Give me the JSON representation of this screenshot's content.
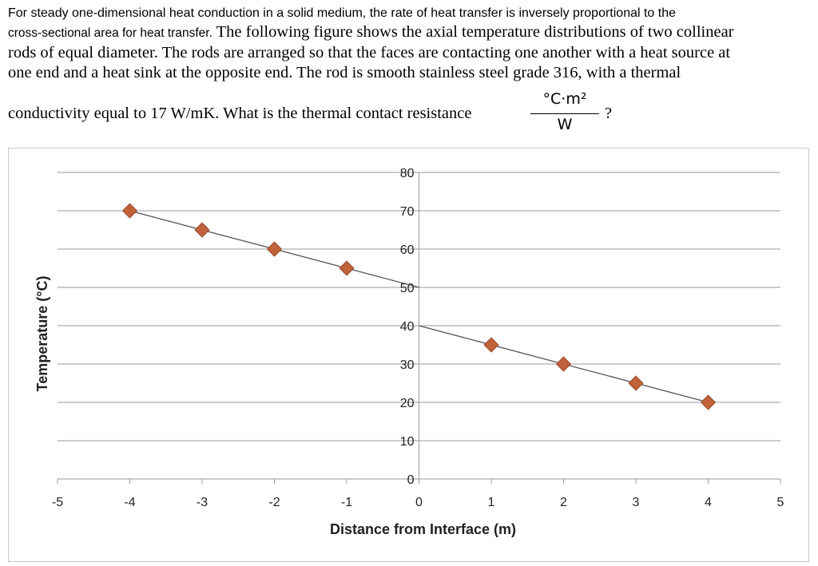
{
  "question": {
    "line1": "For steady one-dimensional heat conduction in a solid medium, the rate of heat transfer is inversely proportional to the",
    "line2_sans": "cross-sectional area for heat transfer.",
    "line2_serif": " The following figure shows the axial temperature distributions of two collinear",
    "line3": "rods of equal diameter.  The rods are arranged so that the faces are contacting one another with a heat source at",
    "line4": "one end and a heat sink at the opposite end.  The rod is smooth stainless steel grade 316, with a thermal",
    "line5": "conductivity equal to 17 W/mK.  What is the thermal contact resistance",
    "unit_numerator": "°C·m²",
    "unit_denominator": "W",
    "end_mark": "?"
  },
  "colors": {
    "marker_fill": "#c0623a",
    "marker_stroke": "#8a3f22",
    "line": "#555555",
    "grid": "#9a9a9a",
    "axis": "#9a9a9a"
  },
  "chart_data": {
    "type": "scatter",
    "xlabel": "Distance from Interface (m)",
    "ylabel": "Temperature (°C)",
    "xlim": [
      -5,
      5
    ],
    "ylim": [
      0,
      80
    ],
    "x_ticks": [
      -5,
      -4,
      -3,
      -2,
      -1,
      0,
      1,
      2,
      3,
      4,
      5
    ],
    "y_ticks": [
      0,
      10,
      20,
      30,
      40,
      50,
      60,
      70,
      80
    ],
    "grid": "horizontal",
    "legend": "none",
    "series": [
      {
        "points": [
          {
            "x": -4,
            "y": 70
          },
          {
            "x": -3,
            "y": 65
          },
          {
            "x": -2,
            "y": 60
          },
          {
            "x": -1,
            "y": 55
          }
        ],
        "trendline": [
          {
            "x": -4,
            "y": 70
          },
          {
            "x": 0,
            "y": 50
          }
        ]
      },
      {
        "points": [
          {
            "x": 1,
            "y": 35
          },
          {
            "x": 2,
            "y": 30
          },
          {
            "x": 3,
            "y": 25
          },
          {
            "x": 4,
            "y": 20
          }
        ],
        "trendline": [
          {
            "x": 0,
            "y": 40
          },
          {
            "x": 4,
            "y": 20
          }
        ]
      }
    ]
  }
}
